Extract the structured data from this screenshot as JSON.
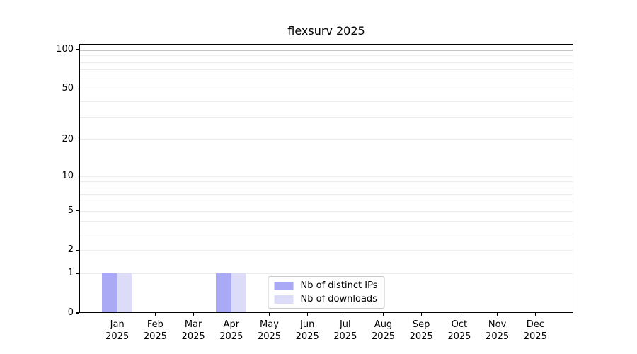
{
  "chart_data": {
    "type": "bar",
    "title": "flexsurv 2025",
    "categories": [
      "Jan",
      "Feb",
      "Mar",
      "Apr",
      "May",
      "Jun",
      "Jul",
      "Aug",
      "Sep",
      "Oct",
      "Nov",
      "Dec"
    ],
    "x_year_label": "2025",
    "series": [
      {
        "name": "Nb of distinct IPs",
        "color": "#a9a9f5",
        "values": [
          1,
          0,
          0,
          1,
          0,
          0,
          0,
          0,
          0,
          0,
          0,
          0
        ]
      },
      {
        "name": "Nb of downloads",
        "color": "#dcdcf8",
        "values": [
          1,
          0,
          0,
          1,
          0,
          0,
          0,
          0,
          0,
          0,
          0,
          0
        ]
      }
    ],
    "y_scale": "log1p",
    "ylim": [
      0,
      110.5
    ],
    "yticks": [
      0,
      1,
      2,
      5,
      10,
      20,
      50,
      100
    ],
    "grid_values": [
      1,
      2,
      3,
      4,
      5,
      6,
      7,
      8,
      9,
      10,
      20,
      30,
      40,
      50,
      60,
      70,
      80,
      90
    ],
    "hline": 100,
    "grid": "horizontal",
    "legend_position": "lower center inside",
    "colors": {
      "grid": "#ececec",
      "hline": "#c6c6c6",
      "axis": "#000000",
      "background": "#ffffff",
      "text": "#000000"
    }
  }
}
